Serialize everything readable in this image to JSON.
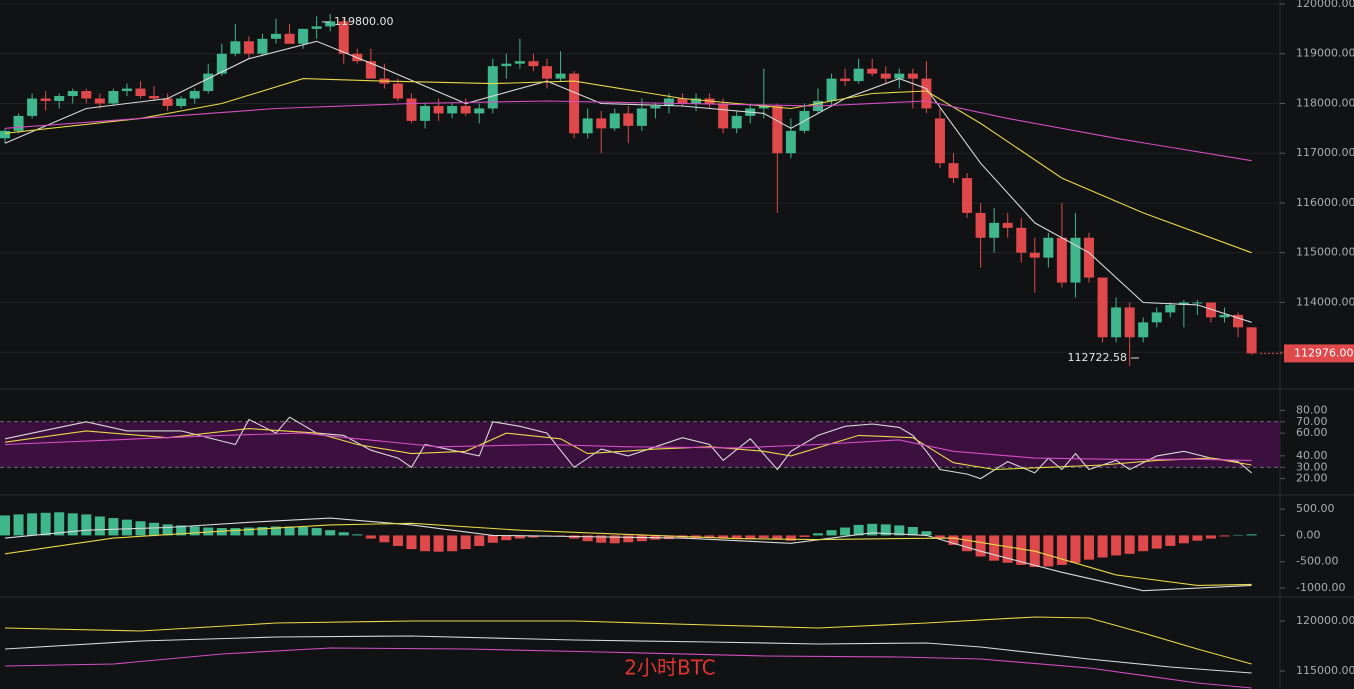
{
  "chart_data": [
    {
      "type": "candlestick",
      "up_color": "#3fb68b",
      "down_color": "#e0494c",
      "open": [
        117300,
        117450,
        117750,
        118100,
        118050,
        118150,
        118250,
        118100,
        118000,
        118250,
        118300,
        118150,
        118100,
        117950,
        118100,
        118250,
        118600,
        119000,
        119250,
        119000,
        119300,
        119400,
        119200,
        119500,
        119550,
        119650,
        119000,
        118850,
        118500,
        118400,
        118100,
        117650,
        117950,
        117800,
        117950,
        117800,
        117900,
        118750,
        118800,
        118850,
        118750,
        118500,
        118600,
        117400,
        117700,
        117500,
        117800,
        117550,
        117900,
        117950,
        118100,
        118000,
        118100,
        118000,
        117500,
        117750,
        117900,
        117950,
        117000,
        117450,
        117850,
        118050,
        118500,
        118450,
        118700,
        118600,
        118500,
        118600,
        118500,
        117700,
        116800,
        116500,
        115800,
        115300,
        115600,
        115500,
        115000,
        114900,
        115300,
        114400,
        115300,
        114500,
        113300,
        113900,
        113300,
        113600,
        113800,
        113950,
        114000,
        114000,
        113700,
        113750,
        113500
      ],
      "high": [
        117500,
        117800,
        118200,
        118250,
        118200,
        118300,
        118300,
        118200,
        118300,
        118400,
        118450,
        118350,
        118200,
        118150,
        118300,
        118800,
        119200,
        119600,
        119350,
        119400,
        119700,
        119600,
        119500,
        119750,
        119800,
        119700,
        119100,
        119100,
        118800,
        118500,
        118200,
        118000,
        118100,
        118000,
        118100,
        118000,
        118900,
        119000,
        119300,
        119000,
        118900,
        119050,
        118650,
        117900,
        117850,
        117900,
        117950,
        118100,
        118000,
        118200,
        118200,
        118200,
        118200,
        118100,
        117850,
        118000,
        118700,
        118000,
        117700,
        118000,
        118300,
        118600,
        118700,
        118900,
        118900,
        118750,
        118700,
        118700,
        118850,
        117900,
        117000,
        116600,
        116000,
        115900,
        115800,
        115700,
        115300,
        115400,
        116000,
        115800,
        115400,
        114500,
        114100,
        114000,
        113700,
        113900,
        114000,
        114050,
        114050,
        114000,
        113900,
        113800,
        113500
      ],
      "low": [
        117200,
        117400,
        117700,
        117850,
        117900,
        118000,
        118000,
        117900,
        117950,
        118150,
        118100,
        118050,
        117850,
        117900,
        118000,
        118200,
        118550,
        118950,
        118900,
        118950,
        119200,
        119200,
        119100,
        119300,
        119450,
        118800,
        118800,
        118500,
        118300,
        118050,
        117600,
        117500,
        117650,
        117700,
        117750,
        117600,
        117800,
        118500,
        118700,
        118650,
        118300,
        118450,
        117300,
        117300,
        117000,
        117450,
        117200,
        117450,
        117700,
        117800,
        117950,
        117850,
        117900,
        117400,
        117400,
        117600,
        117700,
        115800,
        116900,
        117400,
        117800,
        117950,
        118350,
        118400,
        118550,
        118400,
        118300,
        117900,
        117800,
        116700,
        116400,
        115700,
        114700,
        115000,
        115300,
        114800,
        114200,
        114700,
        114300,
        114100,
        114400,
        113200,
        113200,
        112722.58,
        113200,
        113500,
        113700,
        113500,
        113750,
        113600,
        113600,
        113300,
        112950
      ],
      "close": [
        117450,
        117750,
        118100,
        118050,
        118150,
        118250,
        118100,
        118000,
        118250,
        118300,
        118150,
        118100,
        117950,
        118100,
        118250,
        118600,
        119000,
        119250,
        119000,
        119300,
        119400,
        119200,
        119500,
        119550,
        119650,
        119000,
        118850,
        118500,
        118400,
        118100,
        117650,
        117950,
        117800,
        117950,
        117800,
        117900,
        118750,
        118800,
        118850,
        118750,
        118500,
        118600,
        117400,
        117700,
        117500,
        117800,
        117550,
        117900,
        117950,
        118100,
        118000,
        118100,
        118000,
        117500,
        117750,
        117900,
        117950,
        117000,
        117450,
        117850,
        118050,
        118500,
        118450,
        118700,
        118600,
        118500,
        118600,
        118500,
        117900,
        116800,
        116500,
        115800,
        115300,
        115600,
        115500,
        115000,
        114900,
        115300,
        114400,
        115300,
        114500,
        113300,
        113900,
        113300,
        113600,
        113800,
        113950,
        114000,
        114000,
        113700,
        113750,
        113500,
        112976
      ],
      "series": [
        {
          "color": "#d9d9d9",
          "x": [
            0,
            6,
            12,
            18,
            23,
            28,
            34,
            40,
            44,
            50,
            56,
            58,
            62,
            66,
            68,
            72,
            76,
            80,
            84,
            88,
            92
          ],
          "values": [
            117200,
            117900,
            118100,
            118900,
            119250,
            118700,
            118000,
            118450,
            118000,
            117950,
            117800,
            117500,
            118100,
            118500,
            118300,
            116800,
            115600,
            115000,
            114000,
            113950,
            113600
          ]
        },
        {
          "color": "#e8d84a",
          "x": [
            0,
            10,
            16,
            22,
            28,
            36,
            42,
            50,
            58,
            64,
            68,
            72,
            78,
            84,
            92
          ],
          "values": [
            117400,
            117700,
            118000,
            118500,
            118450,
            118400,
            118450,
            118100,
            117900,
            118200,
            118250,
            117600,
            116500,
            115800,
            115000
          ]
        },
        {
          "color": "#d44fc4",
          "x": [
            0,
            10,
            20,
            30,
            40,
            50,
            60,
            68,
            74,
            82,
            92
          ],
          "values": [
            117500,
            117700,
            117900,
            118000,
            118050,
            118000,
            117950,
            118050,
            117700,
            117300,
            116850
          ]
        }
      ],
      "ylim": [
        112240,
        120040
      ],
      "yticks": [
        {
          "value": 113000,
          "label": "113000.00"
        },
        {
          "value": 114000,
          "label": "114000.00"
        },
        {
          "value": 115000,
          "label": "115000.00"
        },
        {
          "value": 116000,
          "label": "116000.00"
        },
        {
          "value": 117000,
          "label": "117000.00"
        },
        {
          "value": 118000,
          "label": "118000.00"
        },
        {
          "value": 119000,
          "label": "119000.00"
        },
        {
          "value": 120000,
          "label": "120000.00"
        }
      ],
      "grid": true,
      "max_label": {
        "value": 119800,
        "label": "119800.00"
      },
      "min_label": {
        "value": 112722.58,
        "label": "112722.58"
      },
      "last_label": {
        "value": 112976,
        "label": "112976.00"
      }
    },
    {
      "type": "line",
      "ylim": [
        10,
        90
      ],
      "yticks": [
        {
          "value": 20,
          "label": "20.00"
        },
        {
          "value": 30,
          "label": "30.00"
        },
        {
          "value": 40,
          "label": "40.00"
        },
        {
          "value": 60,
          "label": "60.00"
        },
        {
          "value": 70,
          "label": "70.00"
        },
        {
          "value": 80,
          "label": "80.00"
        }
      ],
      "band": [
        30,
        70
      ],
      "band_color": "#3b0f3e",
      "series": [
        {
          "color": "#d9d9d9",
          "x": [
            0,
            4,
            6,
            9,
            13,
            17,
            18,
            20,
            21,
            23,
            25,
            27,
            29,
            30,
            31,
            33,
            35,
            36,
            38,
            40,
            42,
            44,
            46,
            48,
            50,
            52,
            53,
            55,
            57,
            58,
            60,
            62,
            64,
            66,
            67,
            68,
            69,
            71,
            72,
            74,
            76,
            77,
            78,
            79,
            80,
            82,
            83,
            85,
            87,
            89,
            91,
            92
          ],
          "values": [
            55,
            65,
            70,
            62,
            62,
            50,
            72,
            60,
            74,
            60,
            58,
            45,
            38,
            30,
            50,
            45,
            40,
            70,
            66,
            60,
            30,
            46,
            40,
            48,
            56,
            50,
            36,
            55,
            28,
            44,
            58,
            66,
            68,
            65,
            58,
            44,
            28,
            24,
            20,
            35,
            25,
            38,
            28,
            42,
            28,
            36,
            28,
            40,
            44,
            38,
            35,
            25
          ]
        },
        {
          "color": "#e8d84a",
          "x": [
            0,
            6,
            12,
            18,
            23,
            26,
            30,
            34,
            37,
            41,
            43,
            48,
            52,
            56,
            58,
            63,
            67,
            70,
            73,
            77,
            81,
            85,
            89,
            92
          ],
          "values": [
            52,
            62,
            56,
            64,
            60,
            50,
            42,
            44,
            60,
            55,
            42,
            46,
            48,
            44,
            40,
            58,
            56,
            34,
            28,
            30,
            32,
            36,
            38,
            32
          ]
        },
        {
          "color": "#d44fc4",
          "x": [
            0,
            8,
            16,
            22,
            26,
            32,
            40,
            46,
            54,
            60,
            66,
            70,
            76,
            82,
            88,
            92
          ],
          "values": [
            50,
            54,
            58,
            60,
            55,
            48,
            50,
            48,
            47,
            50,
            54,
            44,
            38,
            37,
            37,
            36
          ]
        }
      ]
    },
    {
      "type": "bar",
      "up_color": "#3fb68b",
      "down_color": "#e0494c",
      "ylim": [
        -1170,
        730
      ],
      "yticks": [
        {
          "value": 500,
          "label": "500.00"
        },
        {
          "value": 0,
          "label": "0.00"
        },
        {
          "value": -500,
          "label": "-500.00"
        },
        {
          "value": -1000,
          "label": "-1000.00"
        }
      ],
      "values": [
        380,
        400,
        420,
        430,
        440,
        420,
        400,
        360,
        330,
        300,
        270,
        240,
        210,
        190,
        170,
        150,
        140,
        140,
        150,
        160,
        170,
        170,
        160,
        140,
        100,
        60,
        20,
        -60,
        -130,
        -200,
        -260,
        -300,
        -310,
        -300,
        -260,
        -200,
        -140,
        -90,
        -60,
        -40,
        -20,
        -10,
        -60,
        -110,
        -140,
        -150,
        -130,
        -110,
        -80,
        -70,
        -60,
        -50,
        -40,
        -60,
        -70,
        -60,
        -50,
        -80,
        -100,
        -30,
        40,
        100,
        150,
        200,
        220,
        210,
        190,
        160,
        80,
        -60,
        -180,
        -300,
        -400,
        -480,
        -520,
        -560,
        -600,
        -590,
        -560,
        -520,
        -460,
        -420,
        -380,
        -350,
        -300,
        -250,
        -200,
        -150,
        -100,
        -60,
        -20,
        10,
        20
      ],
      "series": [
        {
          "color": "#d9d9d9",
          "x": [
            0,
            6,
            12,
            18,
            24,
            30,
            36,
            42,
            50,
            58,
            64,
            68,
            72,
            78,
            84,
            88,
            92
          ],
          "values": [
            -50,
            100,
            150,
            250,
            330,
            200,
            0,
            -20,
            -50,
            -150,
            50,
            0,
            -300,
            -700,
            -1050,
            -1000,
            -950
          ]
        },
        {
          "color": "#e8d84a",
          "x": [
            0,
            8,
            16,
            24,
            30,
            38,
            46,
            54,
            60,
            66,
            70,
            76,
            82,
            88,
            92
          ],
          "values": [
            -350,
            -50,
            80,
            200,
            230,
            100,
            20,
            -60,
            -80,
            -60,
            -50,
            -300,
            -750,
            -950,
            -930
          ]
        }
      ]
    },
    {
      "type": "line",
      "ylim": [
        113200,
        122300
      ],
      "yticks": [
        {
          "value": 115000,
          "label": "115000.00"
        },
        {
          "value": 120000,
          "label": "120000.00"
        }
      ],
      "annotation": "2小时BTC",
      "series": [
        {
          "color": "#e8d84a",
          "x": [
            0,
            10,
            20,
            30,
            42,
            52,
            60,
            68,
            76,
            80,
            84,
            88,
            92
          ],
          "values": [
            119300,
            119000,
            119800,
            120000,
            120000,
            119600,
            119300,
            119800,
            120400,
            120300,
            118800,
            117200,
            115700
          ]
        },
        {
          "color": "#d9d9d9",
          "x": [
            0,
            10,
            20,
            30,
            42,
            52,
            60,
            68,
            72,
            80,
            86,
            92
          ],
          "values": [
            117200,
            118000,
            118400,
            118500,
            118100,
            117900,
            117700,
            117800,
            117400,
            116200,
            115400,
            114800
          ]
        },
        {
          "color": "#d44fc4",
          "x": [
            0,
            8,
            16,
            24,
            34,
            44,
            56,
            66,
            72,
            80,
            88,
            92
          ],
          "values": [
            115500,
            115700,
            116700,
            117300,
            117200,
            116900,
            116500,
            116400,
            116200,
            115300,
            113800,
            113300
          ]
        }
      ]
    }
  ]
}
